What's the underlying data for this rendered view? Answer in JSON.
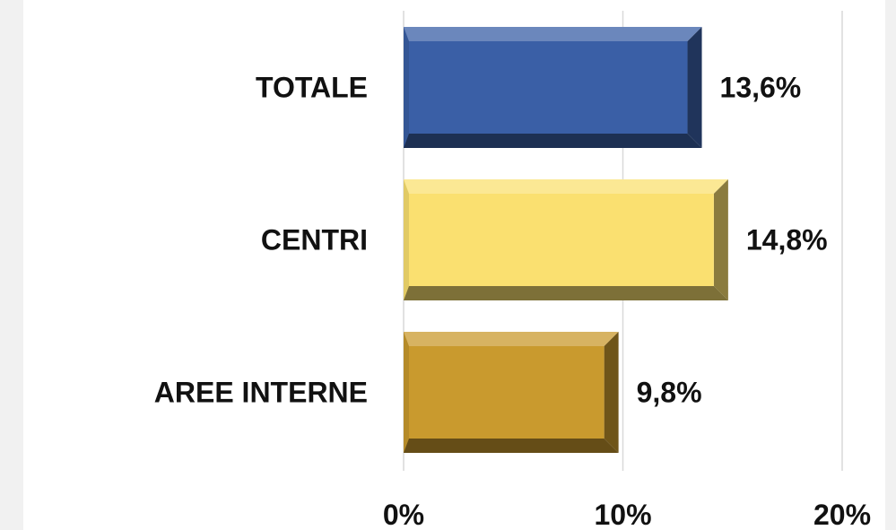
{
  "chart_data": {
    "type": "bar",
    "orientation": "horizontal",
    "categories": [
      "TOTALE",
      "CENTRI",
      "AREE INTERNE"
    ],
    "values": [
      13.6,
      14.8,
      9.8
    ],
    "value_labels": [
      "13,6%",
      "14,8%",
      "9,8%"
    ],
    "colors": [
      "#3A5FA6",
      "#FAE070",
      "#C99A2E"
    ],
    "xlim": [
      0,
      20
    ],
    "xticks": [
      0,
      10,
      20
    ],
    "xtick_labels": [
      "0%",
      "10%",
      "20%"
    ],
    "grid": true,
    "bar_style": "beveled"
  }
}
